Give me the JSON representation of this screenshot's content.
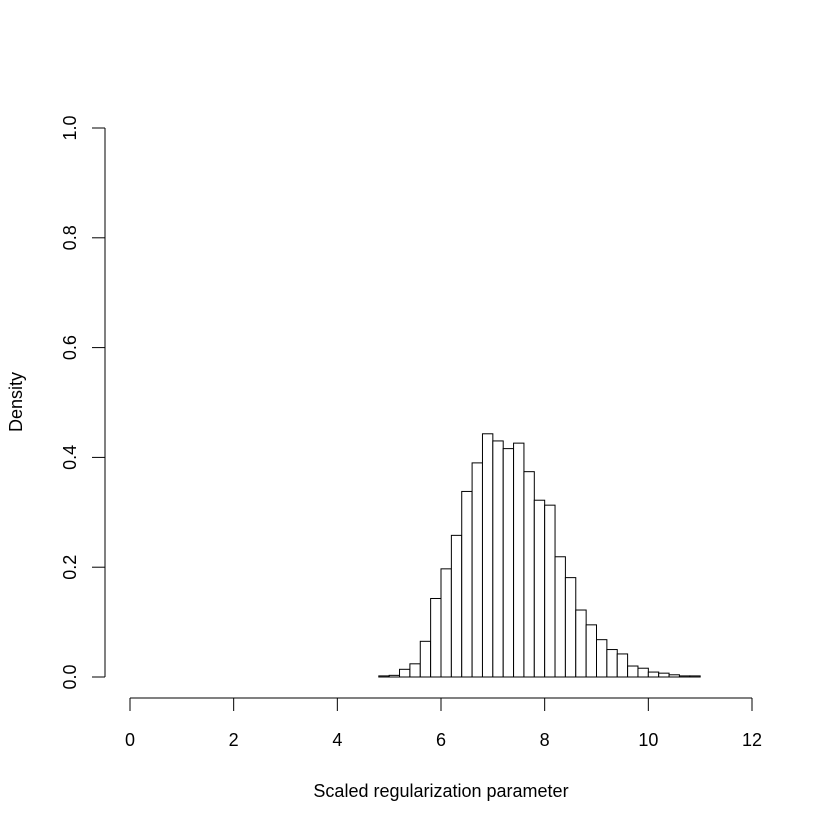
{
  "chart_data": {
    "type": "bar",
    "subtype": "histogram",
    "title": "",
    "xlabel": "Scaled regularization parameter",
    "ylabel": "Density",
    "xlim": [
      0,
      12
    ],
    "ylim": [
      0,
      1.0
    ],
    "x_ticks": [
      0,
      2,
      4,
      6,
      8,
      10,
      12
    ],
    "x_tick_labels": [
      "0",
      "2",
      "4",
      "6",
      "8",
      "10",
      "12"
    ],
    "y_ticks": [
      0,
      0.2,
      0.4,
      0.6,
      0.8,
      1.0
    ],
    "y_tick_labels": [
      "0.0",
      "0.2",
      "0.4",
      "0.6",
      "0.8",
      "1.0"
    ],
    "grid": false,
    "bin_width": 0.2,
    "bin_start": 0,
    "values": [
      0,
      0,
      0,
      0,
      0,
      0,
      0,
      0,
      0,
      0,
      0,
      0,
      0,
      0,
      0,
      0,
      0,
      0,
      0,
      0,
      0,
      0,
      0,
      0,
      0.002,
      0.003,
      0.014,
      0.024,
      0.065,
      0.143,
      0.197,
      0.258,
      0.338,
      0.39,
      0.443,
      0.43,
      0.416,
      0.426,
      0.374,
      0.322,
      0.313,
      0.219,
      0.181,
      0.122,
      0.095,
      0.068,
      0.05,
      0.042,
      0.02,
      0.016,
      0.009,
      0.007,
      0.004,
      0.002,
      0.002,
      0,
      0,
      0,
      0,
      0
    ]
  }
}
